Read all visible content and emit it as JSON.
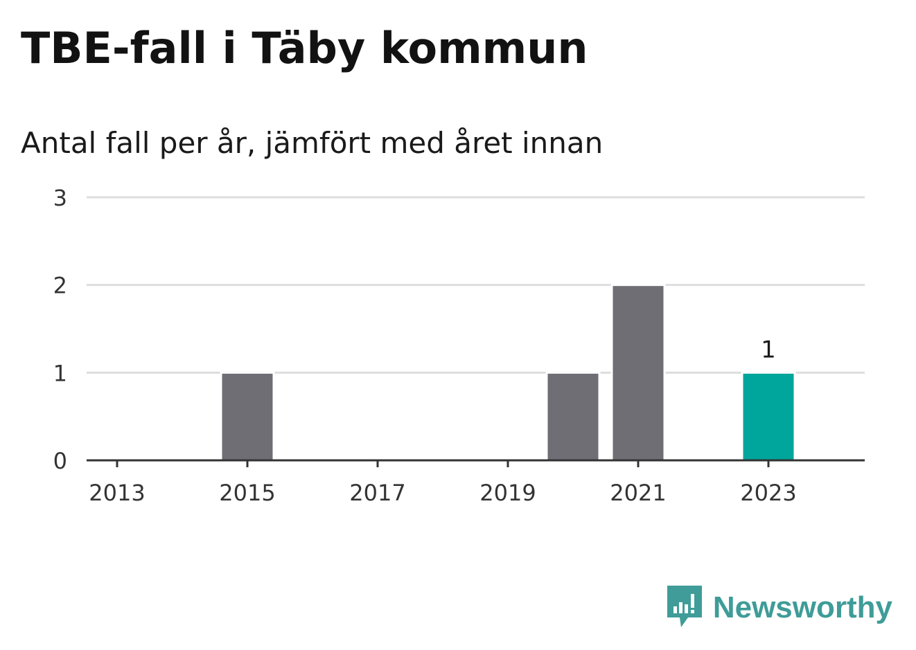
{
  "header": {
    "title": "TBE-fall i Täby kommun",
    "subtitle": "Antal fall per år, jämfört med året innan"
  },
  "colors": {
    "bar_default": "#6f6e74",
    "bar_highlight": "#00a59b",
    "grid": "#dddddd",
    "axis": "#333333",
    "brand": "#3f9c98"
  },
  "chart_data": {
    "type": "bar",
    "categories": [
      "2013",
      "2014",
      "2015",
      "2016",
      "2017",
      "2018",
      "2019",
      "2020",
      "2021",
      "2022",
      "2023"
    ],
    "values": [
      0,
      0,
      1,
      0,
      0,
      0,
      0,
      1,
      2,
      0,
      1
    ],
    "x_tick_labels": [
      "2013",
      "2015",
      "2017",
      "2019",
      "2021",
      "2023"
    ],
    "y_ticks": [
      0,
      1,
      2,
      3
    ],
    "ylim": [
      0,
      3
    ],
    "highlight_category": "2023",
    "data_labels": [
      {
        "category": "2023",
        "text": "1"
      }
    ],
    "grid": true,
    "legend": "none",
    "xlabel": "",
    "ylabel": ""
  },
  "brand": {
    "logo_text": "Newsworthy",
    "logo_icon": "newsworthy-speech-bubble-bars-icon"
  }
}
